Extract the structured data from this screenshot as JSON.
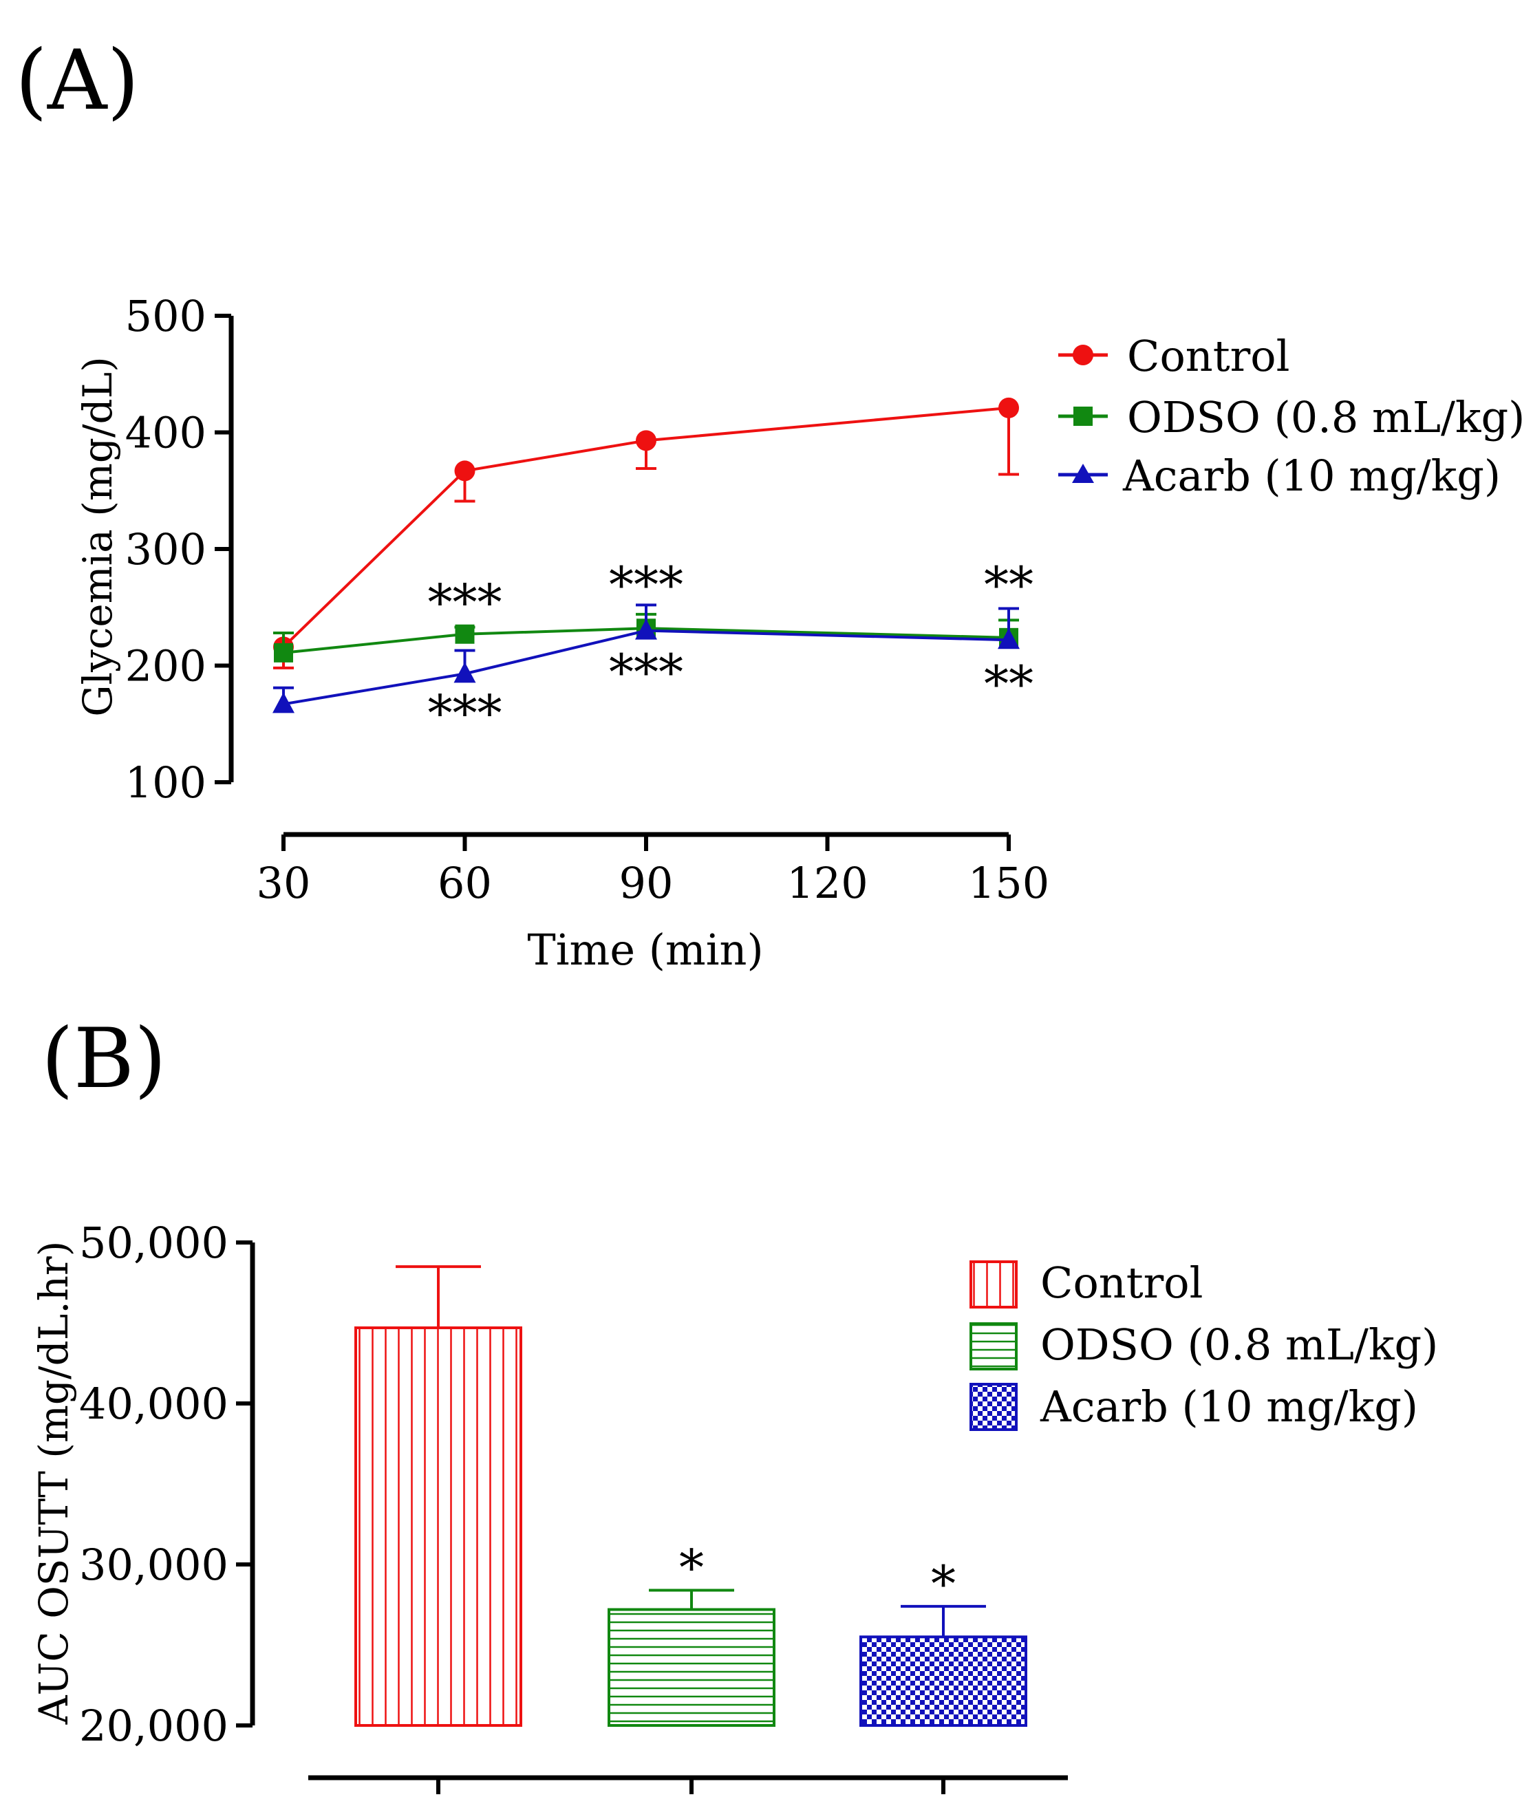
{
  "colors": {
    "control": "#ee1111",
    "odso": "#118811",
    "acarb": "#1111bb",
    "axis": "#000000"
  },
  "chart_data": [
    {
      "type": "line",
      "panel_label": "(A)",
      "title": "",
      "xlabel": "Time (min)",
      "ylabel": "Glycemia (mg/dL)",
      "xlim": [
        30,
        150
      ],
      "ylim": [
        100,
        500
      ],
      "x_ticks": [
        30,
        60,
        90,
        120,
        150
      ],
      "x_tick_labels": [
        "30",
        "60",
        "90",
        "120",
        "150"
      ],
      "y_ticks": [
        100,
        200,
        300,
        400,
        500
      ],
      "y_tick_labels": [
        "100",
        "200",
        "300",
        "400",
        "500"
      ],
      "legend_position": "top-right",
      "series": [
        {
          "key": "control",
          "name": "Control",
          "marker": "circle",
          "x": [
            30,
            60,
            90,
            150
          ],
          "y": [
            216,
            367,
            393,
            421
          ],
          "err": [
            18,
            26,
            24,
            57
          ],
          "err_dir": "down"
        },
        {
          "key": "odso",
          "name": "ODSO (0.8 mL/kg)",
          "marker": "square",
          "x": [
            30,
            60,
            90,
            150
          ],
          "y": [
            211,
            227,
            232,
            224
          ],
          "err": [
            17,
            6,
            12,
            15
          ],
          "err_dir": "up"
        },
        {
          "key": "acarb",
          "name": "Acarb (10 mg/kg)",
          "marker": "triangle",
          "x": [
            30,
            60,
            90,
            150
          ],
          "y": [
            167,
            193,
            230,
            222
          ],
          "err": [
            14,
            20,
            22,
            27
          ],
          "err_dir": "up"
        }
      ],
      "annotations": [
        {
          "text": "***",
          "x": 60,
          "y": 255
        },
        {
          "text": "***",
          "x": 90,
          "y": 270
        },
        {
          "text": "**",
          "x": 150,
          "y": 270
        },
        {
          "text": "***",
          "x": 60,
          "y": 160
        },
        {
          "text": "***",
          "x": 90,
          "y": 195
        },
        {
          "text": "**",
          "x": 150,
          "y": 185
        }
      ]
    },
    {
      "type": "bar",
      "panel_label": "(B)",
      "title": "",
      "xlabel": "",
      "ylabel": "AUC OSUTT (mg/dL.hr)",
      "ylim": [
        20000,
        50000
      ],
      "y_ticks": [
        20000,
        30000,
        40000,
        50000
      ],
      "y_tick_labels": [
        "20,000",
        "30,000",
        "40,000",
        "50,000"
      ],
      "legend_position": "top-right",
      "categories": [
        "Control",
        "ODSO (0.8 mL/kg)",
        "Acarb (10 mg/kg)"
      ],
      "series": [
        {
          "name": "AUC OSUTT",
          "values": [
            44700,
            27200,
            25500
          ],
          "err": [
            3800,
            1200,
            1900
          ],
          "keys": [
            "control",
            "odso",
            "acarb"
          ],
          "patterns": [
            "vertical-lines",
            "horizontal-lines",
            "checkerboard"
          ]
        }
      ],
      "annotations": [
        {
          "text": "*",
          "category": "ODSO (0.8 mL/kg)"
        },
        {
          "text": "*",
          "category": "Acarb (10 mg/kg)"
        }
      ]
    }
  ]
}
